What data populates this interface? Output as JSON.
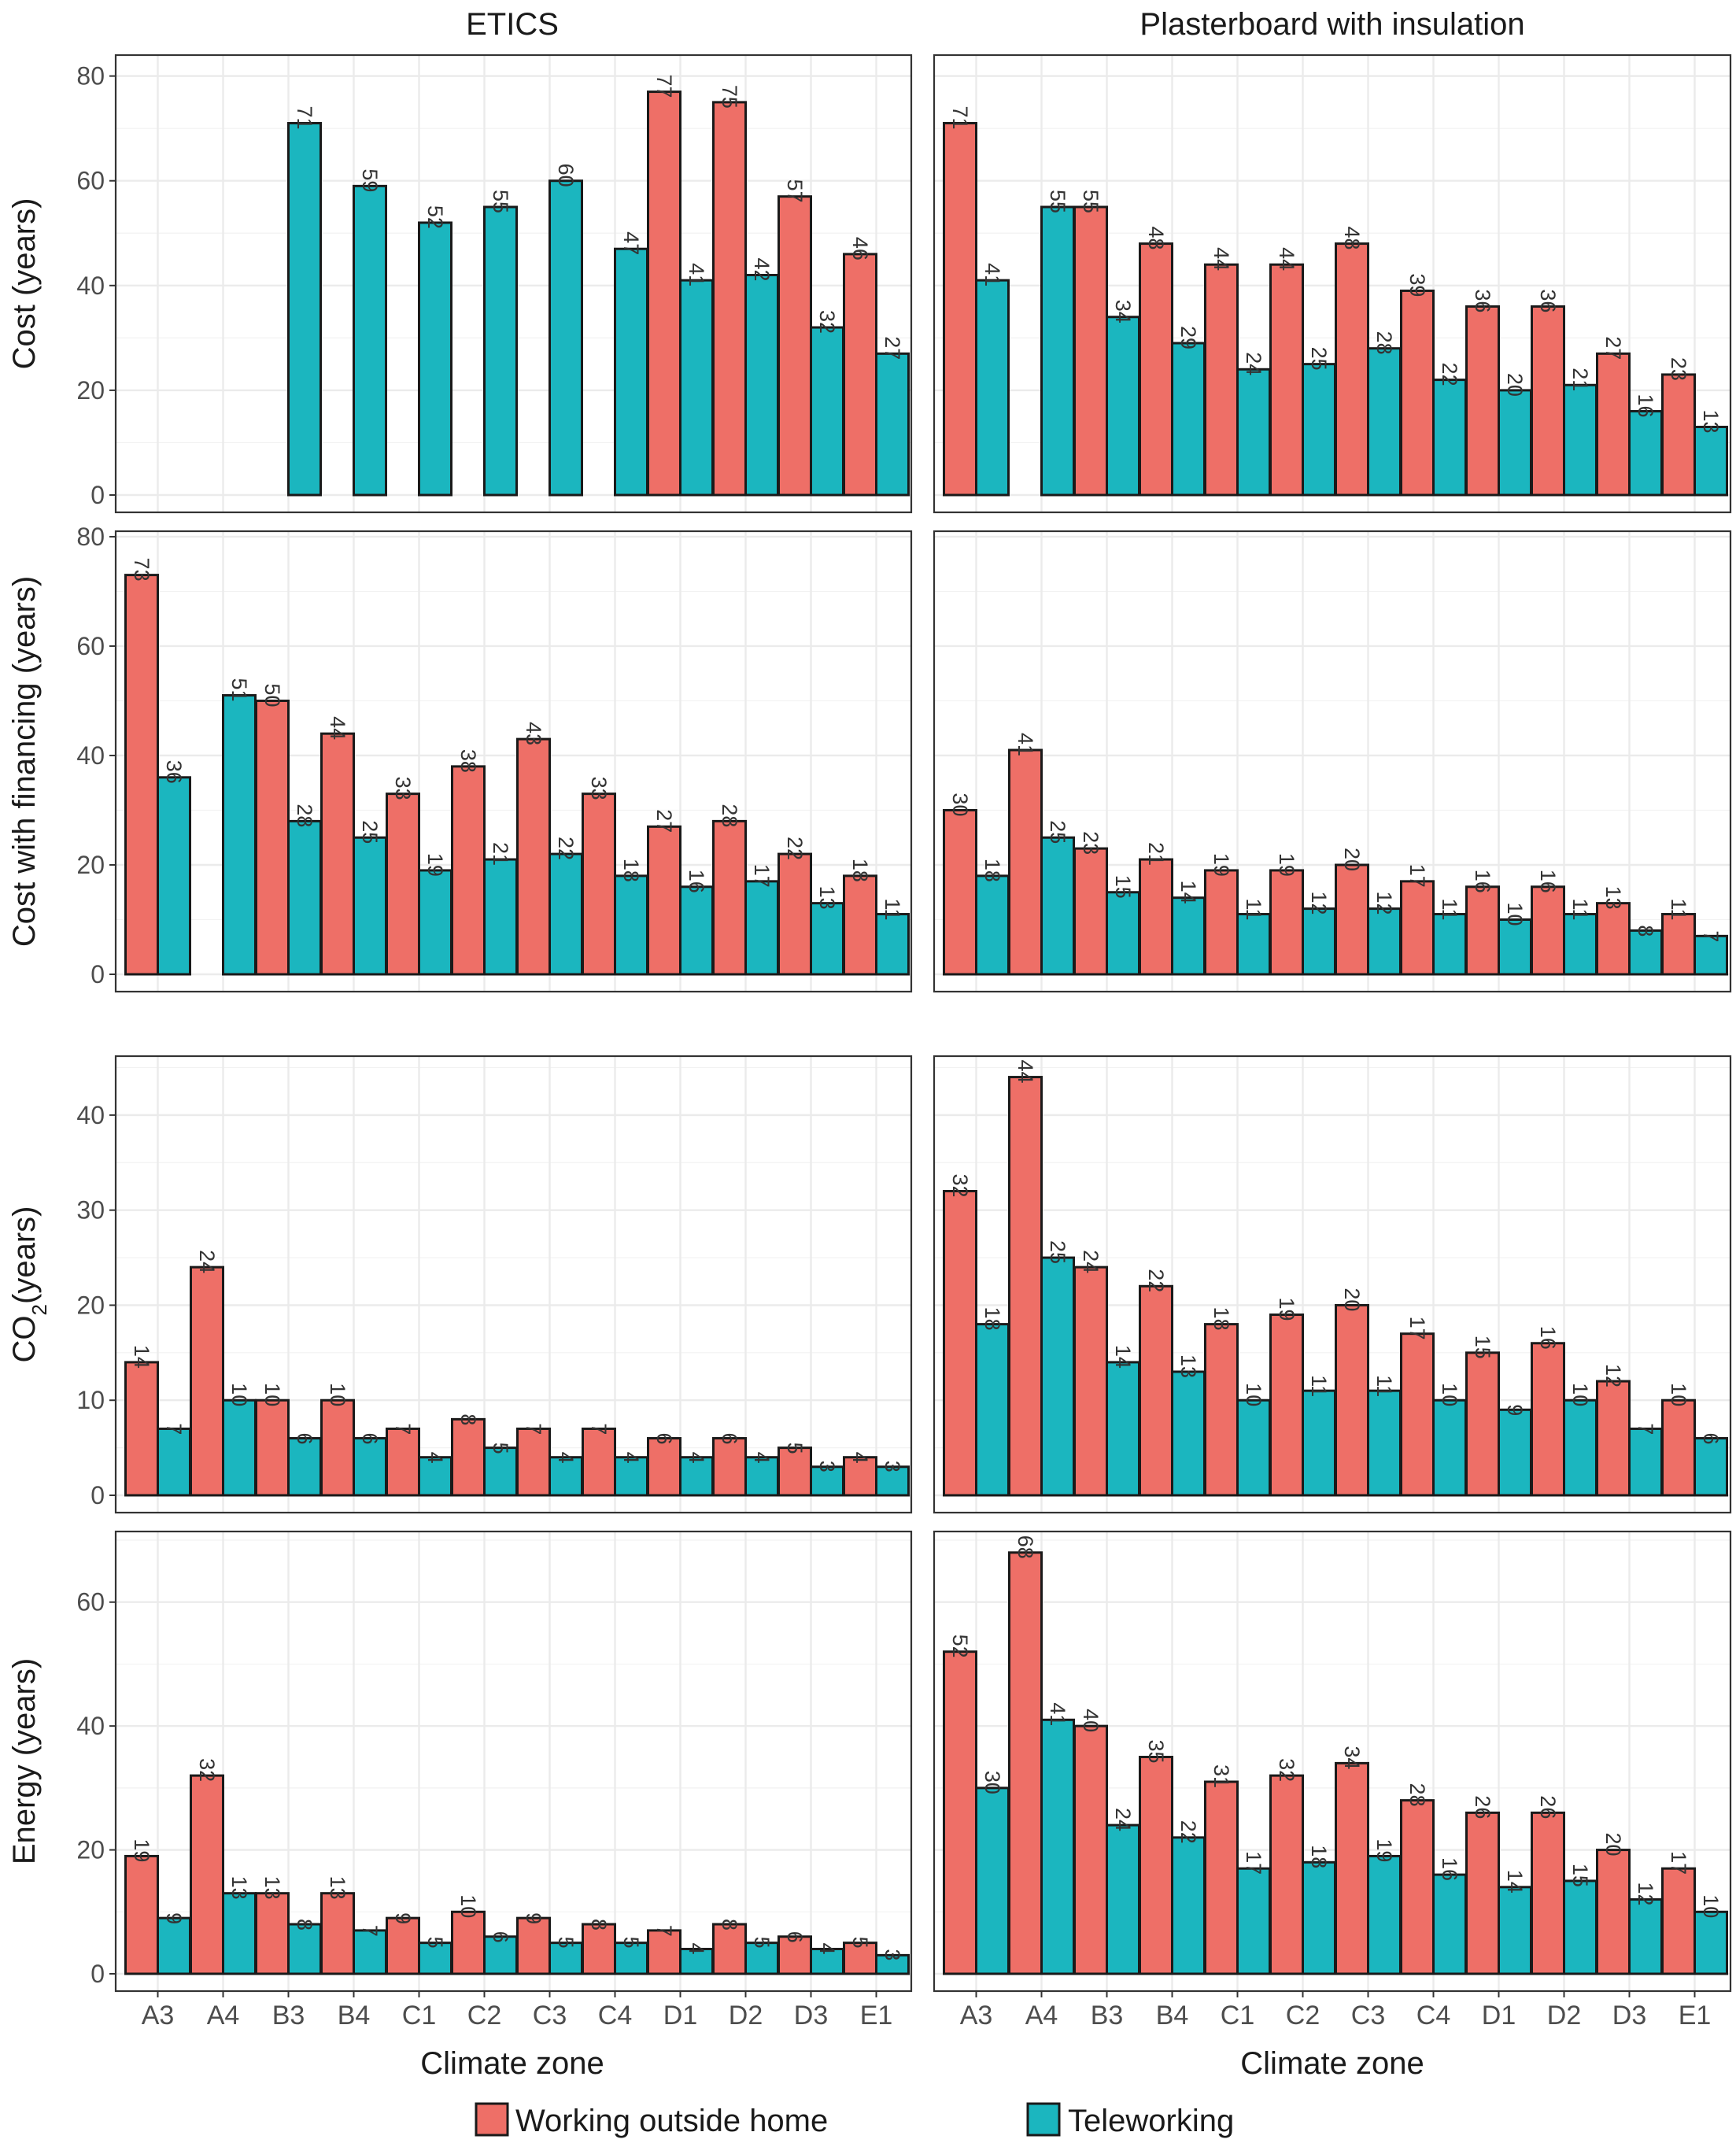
{
  "columns": [
    "ETICS",
    "Plasterboard with insulation"
  ],
  "x_axis_label": "Climate zone",
  "legend": [
    {
      "name": "Working outside home",
      "color": "#EE6F67"
    },
    {
      "name": "Teleworking",
      "color": "#1BB6BF"
    }
  ],
  "chart_data": {
    "type": "bar",
    "layout": "faceted grid: 4 rows (metrics) x 2 columns (wall solutions), grouped bars",
    "categories": [
      "A3",
      "A4",
      "B3",
      "B4",
      "C1",
      "C2",
      "C3",
      "C4",
      "D1",
      "D2",
      "D3",
      "E1"
    ],
    "series_names": [
      "Working outside home",
      "Teleworking"
    ],
    "rows": [
      {
        "ylabel": "Cost (years)",
        "ylim": [
          0,
          84
        ],
        "yticks": [
          0,
          20,
          40,
          60,
          80
        ],
        "panels": [
          {
            "column": "ETICS",
            "values": [
              [
                null,
                null,
                null,
                null,
                null,
                null,
                null,
                null,
                77,
                75,
                57,
                46
              ],
              [
                null,
                null,
                71,
                59,
                52,
                55,
                60,
                47,
                41,
                42,
                32,
                27
              ]
            ]
          },
          {
            "column": "Plasterboard with insulation",
            "values": [
              [
                71,
                null,
                55,
                48,
                44,
                44,
                48,
                39,
                36,
                36,
                27,
                23
              ],
              [
                41,
                55,
                34,
                29,
                24,
                25,
                28,
                22,
                20,
                21,
                16,
                13
              ]
            ]
          }
        ]
      },
      {
        "ylabel": "Cost with financing (years)",
        "ylim": [
          0,
          81
        ],
        "yticks": [
          0,
          20,
          40,
          60,
          80
        ],
        "panels": [
          {
            "column": "ETICS",
            "values": [
              [
                73,
                null,
                50,
                44,
                33,
                38,
                43,
                33,
                27,
                28,
                22,
                18
              ],
              [
                36,
                51,
                28,
                25,
                19,
                21,
                22,
                18,
                16,
                17,
                13,
                11
              ]
            ]
          },
          {
            "column": "Plasterboard with insulation",
            "values": [
              [
                30,
                41,
                23,
                21,
                19,
                19,
                20,
                17,
                16,
                16,
                13,
                11
              ],
              [
                18,
                25,
                15,
                14,
                11,
                12,
                12,
                11,
                10,
                11,
                8,
                7
              ]
            ]
          }
        ]
      },
      {
        "ylabel": "CO2 (years)",
        "ylim": [
          0,
          46.2
        ],
        "yticks": [
          0,
          10,
          20,
          30,
          40
        ],
        "panels": [
          {
            "column": "ETICS",
            "values": [
              [
                14,
                24,
                10,
                10,
                7,
                8,
                7,
                7,
                6,
                6,
                5,
                4
              ],
              [
                7,
                10,
                6,
                6,
                4,
                5,
                4,
                4,
                4,
                4,
                3,
                3
              ]
            ]
          },
          {
            "column": "Plasterboard with insulation",
            "values": [
              [
                32,
                44,
                24,
                22,
                18,
                19,
                20,
                17,
                15,
                16,
                12,
                10
              ],
              [
                18,
                25,
                14,
                13,
                10,
                11,
                11,
                10,
                9,
                10,
                7,
                6
              ]
            ]
          }
        ]
      },
      {
        "ylabel": "Energy (years)",
        "ylim": [
          0,
          71.4
        ],
        "yticks": [
          0,
          20,
          40,
          60
        ],
        "panels": [
          {
            "column": "ETICS",
            "values": [
              [
                19,
                32,
                13,
                13,
                9,
                10,
                9,
                8,
                7,
                8,
                6,
                5
              ],
              [
                9,
                13,
                8,
                7,
                5,
                6,
                5,
                5,
                4,
                5,
                4,
                3
              ]
            ]
          },
          {
            "column": "Plasterboard with insulation",
            "values": [
              [
                52,
                68,
                40,
                35,
                31,
                32,
                34,
                28,
                26,
                26,
                20,
                17
              ],
              [
                30,
                41,
                24,
                22,
                17,
                18,
                19,
                16,
                14,
                15,
                12,
                10
              ]
            ]
          }
        ]
      }
    ]
  }
}
